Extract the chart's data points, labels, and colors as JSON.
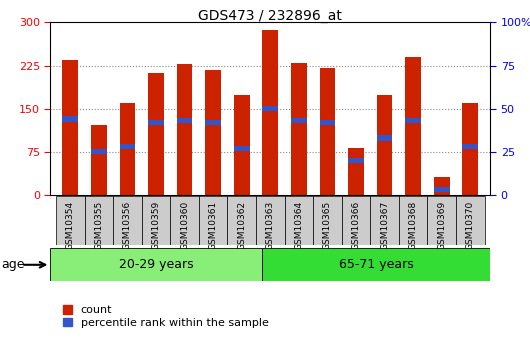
{
  "title": "GDS473 / 232896_at",
  "samples": [
    "GSM10354",
    "GSM10355",
    "GSM10356",
    "GSM10359",
    "GSM10360",
    "GSM10361",
    "GSM10362",
    "GSM10363",
    "GSM10364",
    "GSM10365",
    "GSM10366",
    "GSM10367",
    "GSM10368",
    "GSM10369",
    "GSM10370"
  ],
  "counts": [
    235,
    122,
    160,
    212,
    228,
    218,
    173,
    287,
    230,
    220,
    82,
    173,
    240,
    32,
    160
  ],
  "percentile_ranks": [
    44,
    25,
    28,
    42,
    43,
    42,
    27,
    50,
    43,
    42,
    20,
    33,
    43,
    3,
    28
  ],
  "group_labels": [
    "20-29 years",
    "65-71 years"
  ],
  "n_group1": 7,
  "n_group2": 8,
  "age_label": "age",
  "bar_color": "#cc2200",
  "blue_color": "#3355cc",
  "ylim_left": [
    0,
    300
  ],
  "ylim_right": [
    0,
    100
  ],
  "yticks_left": [
    0,
    75,
    150,
    225,
    300
  ],
  "yticks_right": [
    0,
    25,
    50,
    75,
    100
  ],
  "group1_color": "#88ee77",
  "group2_color": "#33dd33",
  "bar_width": 0.55,
  "legend_count_label": "count",
  "legend_pct_label": "percentile rank within the sample",
  "xtick_bg_color": "#cccccc",
  "grid_color": "#888888"
}
